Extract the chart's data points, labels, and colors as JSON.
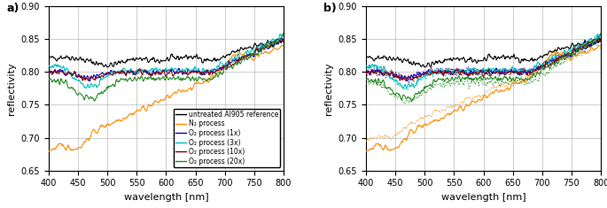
{
  "xlim": [
    400,
    800
  ],
  "ylim": [
    0.65,
    0.9
  ],
  "yticks": [
    0.65,
    0.7,
    0.75,
    0.8,
    0.85,
    0.9
  ],
  "xticks": [
    400,
    450,
    500,
    550,
    600,
    650,
    700,
    750,
    800
  ],
  "xlabel": "wavelength [nm]",
  "ylabel": "reflectivity",
  "panel_a_label": "a)",
  "panel_b_label": "b)",
  "legend_labels": [
    "untreated Al905 reference",
    "N₂ process",
    "O₂ process (1x)",
    "O₂ process (3x)",
    "O₂ process (10x)",
    "O₂ process (20x)"
  ],
  "colors": {
    "black": "#000000",
    "orange": "#FF8C00",
    "blue": "#0000CD",
    "cyan": "#00BFBF",
    "darkred": "#8B0000",
    "green": "#228B22"
  },
  "line_colors": [
    "#000000",
    "#FF8C00",
    "#0000CD",
    "#00BFBF",
    "#8B0000",
    "#228B22"
  ]
}
